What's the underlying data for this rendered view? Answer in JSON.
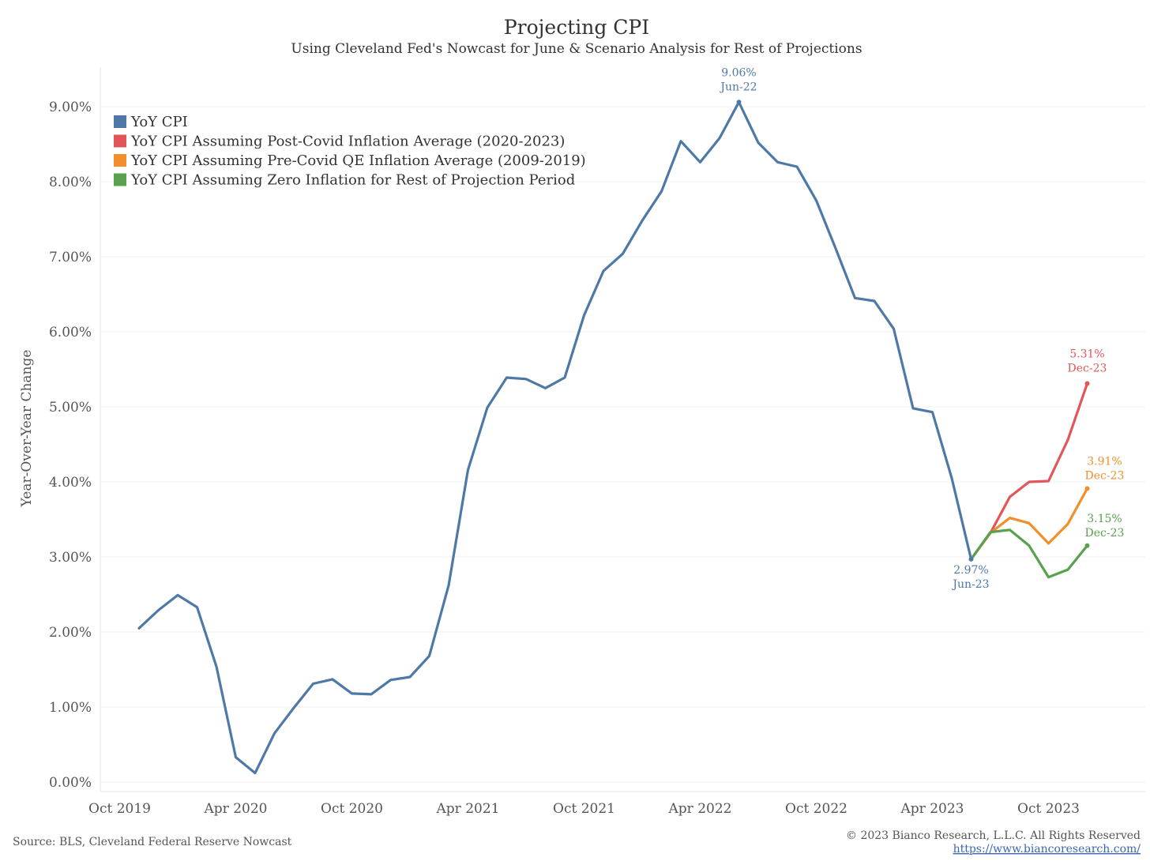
{
  "chart_data": {
    "type": "line",
    "title": "Projecting CPI",
    "subtitle": "Using Cleveland Fed's Nowcast for June & Scenario Analysis for Rest of Projections",
    "ylabel": "Year-Over-Year Change",
    "xlabel": "",
    "ylim": [
      0,
      9.5
    ],
    "yticks": [
      "0.00%",
      "1.00%",
      "2.00%",
      "3.00%",
      "4.00%",
      "5.00%",
      "6.00%",
      "7.00%",
      "8.00%",
      "9.00%"
    ],
    "x_start": "2019-11",
    "x_range": [
      "2019-09",
      "2024-03"
    ],
    "xticks": [
      {
        "label": "Oct 2019",
        "date": "2019-10"
      },
      {
        "label": "Apr 2020",
        "date": "2020-04"
      },
      {
        "label": "Oct 2020",
        "date": "2020-10"
      },
      {
        "label": "Apr 2021",
        "date": "2021-04"
      },
      {
        "label": "Oct 2021",
        "date": "2021-10"
      },
      {
        "label": "Apr 2022",
        "date": "2022-04"
      },
      {
        "label": "Oct 2022",
        "date": "2022-10"
      },
      {
        "label": "Apr 2023",
        "date": "2023-04"
      },
      {
        "label": "Oct 2023",
        "date": "2023-10"
      }
    ],
    "grid": true,
    "legend_position": "top-left",
    "series": [
      {
        "name": "YoY CPI",
        "color": "#4e79a7",
        "x": [
          "2019-11",
          "2019-12",
          "2020-01",
          "2020-02",
          "2020-03",
          "2020-04",
          "2020-05",
          "2020-06",
          "2020-07",
          "2020-08",
          "2020-09",
          "2020-10",
          "2020-11",
          "2020-12",
          "2021-01",
          "2021-02",
          "2021-03",
          "2021-04",
          "2021-05",
          "2021-06",
          "2021-07",
          "2021-08",
          "2021-09",
          "2021-10",
          "2021-11",
          "2021-12",
          "2022-01",
          "2022-02",
          "2022-03",
          "2022-04",
          "2022-05",
          "2022-06",
          "2022-07",
          "2022-08",
          "2022-09",
          "2022-10",
          "2022-11",
          "2022-12",
          "2023-01",
          "2023-02",
          "2023-03",
          "2023-04",
          "2023-05",
          "2023-06"
        ],
        "y": [
          2.05,
          2.29,
          2.49,
          2.33,
          1.54,
          0.33,
          0.12,
          0.65,
          0.99,
          1.31,
          1.37,
          1.18,
          1.17,
          1.36,
          1.4,
          1.68,
          2.62,
          4.16,
          4.99,
          5.39,
          5.37,
          5.25,
          5.39,
          6.22,
          6.81,
          7.04,
          7.48,
          7.87,
          8.54,
          8.26,
          8.58,
          9.06,
          8.52,
          8.26,
          8.2,
          7.75,
          7.11,
          6.45,
          6.41,
          6.04,
          4.98,
          4.93,
          4.05,
          2.97
        ]
      },
      {
        "name": "YoY CPI Assuming Post-Covid Inflation Average (2020-2023)",
        "color": "#e15759",
        "x": [
          "2023-06",
          "2023-07",
          "2023-08",
          "2023-09",
          "2023-10",
          "2023-11",
          "2023-12"
        ],
        "y": [
          2.97,
          3.32,
          3.8,
          4.0,
          4.01,
          4.56,
          5.31
        ]
      },
      {
        "name": "YoY CPI Assuming Pre-Covid QE Inflation Average (2009-2019)",
        "color": "#f28e2b",
        "x": [
          "2023-06",
          "2023-07",
          "2023-08",
          "2023-09",
          "2023-10",
          "2023-11",
          "2023-12"
        ],
        "y": [
          2.97,
          3.32,
          3.52,
          3.45,
          3.18,
          3.44,
          3.91
        ]
      },
      {
        "name": "YoY CPI Assuming Zero Inflation for Rest of Projection Period",
        "color": "#59a14f",
        "x": [
          "2023-06",
          "2023-07",
          "2023-08",
          "2023-09",
          "2023-10",
          "2023-11",
          "2023-12"
        ],
        "y": [
          2.97,
          3.33,
          3.36,
          3.15,
          2.73,
          2.83,
          3.15
        ]
      }
    ],
    "annotations": [
      {
        "value": "9.06%",
        "date_label": "Jun-22",
        "x": "2022-06",
        "y": 9.06,
        "color": "#4e79a7",
        "side": "above"
      },
      {
        "value": "2.97%",
        "date_label": "Jun-23",
        "x": "2023-06",
        "y": 2.97,
        "color": "#4e79a7",
        "side": "below"
      },
      {
        "value": "5.31%",
        "date_label": "Dec-23",
        "x": "2023-12",
        "y": 5.31,
        "color": "#e15759",
        "side": "above"
      },
      {
        "value": "3.91%",
        "date_label": "Dec-23",
        "x": "2023-12",
        "y": 3.91,
        "color": "#f28e2b",
        "side": "above-right"
      },
      {
        "value": "3.15%",
        "date_label": "Dec-23",
        "x": "2023-12",
        "y": 3.15,
        "color": "#59a14f",
        "side": "above-right"
      }
    ]
  },
  "footer": {
    "source": "Source: BLS, Cleveland Federal Reserve Nowcast",
    "copyright": "© 2023 Bianco Research, L.L.C. All Rights Reserved",
    "url": "https://www.biancoresearch.com/"
  }
}
